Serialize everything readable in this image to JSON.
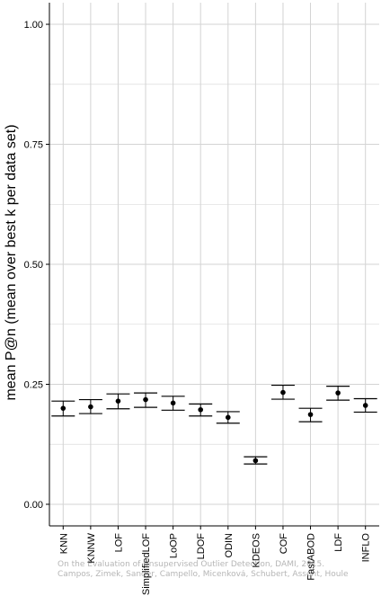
{
  "chart_data": {
    "type": "scatter",
    "subtype": "point-with-error-bars",
    "title": "",
    "xlabel": "",
    "ylabel": "mean P@n (mean over best k per data set)",
    "ylim": [
      -0.045,
      1.045
    ],
    "yticks": [
      0.0,
      0.25,
      0.5,
      0.75,
      1.0
    ],
    "ytick_labels": [
      "0.00",
      "0.25",
      "0.50",
      "0.75",
      "1.00"
    ],
    "grid": true,
    "legend": "none",
    "categories": [
      "KNN",
      "KNNW",
      "LOF",
      "SimplifiedLOF",
      "LoOP",
      "LDOF",
      "ODIN",
      "KDEOS",
      "COF",
      "FastABOD",
      "LDF",
      "INFLO"
    ],
    "series": [
      {
        "values": [
          0.2,
          0.203,
          0.215,
          0.218,
          0.211,
          0.197,
          0.181,
          0.091,
          0.233,
          0.187,
          0.232,
          0.206
        ],
        "lower": [
          0.184,
          0.189,
          0.199,
          0.202,
          0.196,
          0.184,
          0.169,
          0.084,
          0.219,
          0.172,
          0.217,
          0.192
        ],
        "upper": [
          0.215,
          0.218,
          0.23,
          0.232,
          0.225,
          0.209,
          0.193,
          0.099,
          0.248,
          0.2,
          0.246,
          0.22
        ]
      }
    ],
    "colors": {
      "background": "#ffffff",
      "grid": "#d3d3d3",
      "axis": "#000000",
      "points": "#000000"
    }
  },
  "watermark": {
    "line1": "On the Evaluation of Unsupervised Outlier Detection, DAMI, 2015.",
    "line2": "Campos, Zimek, Sander, Campello, Micenková, Schubert, Assent, Houle"
  }
}
